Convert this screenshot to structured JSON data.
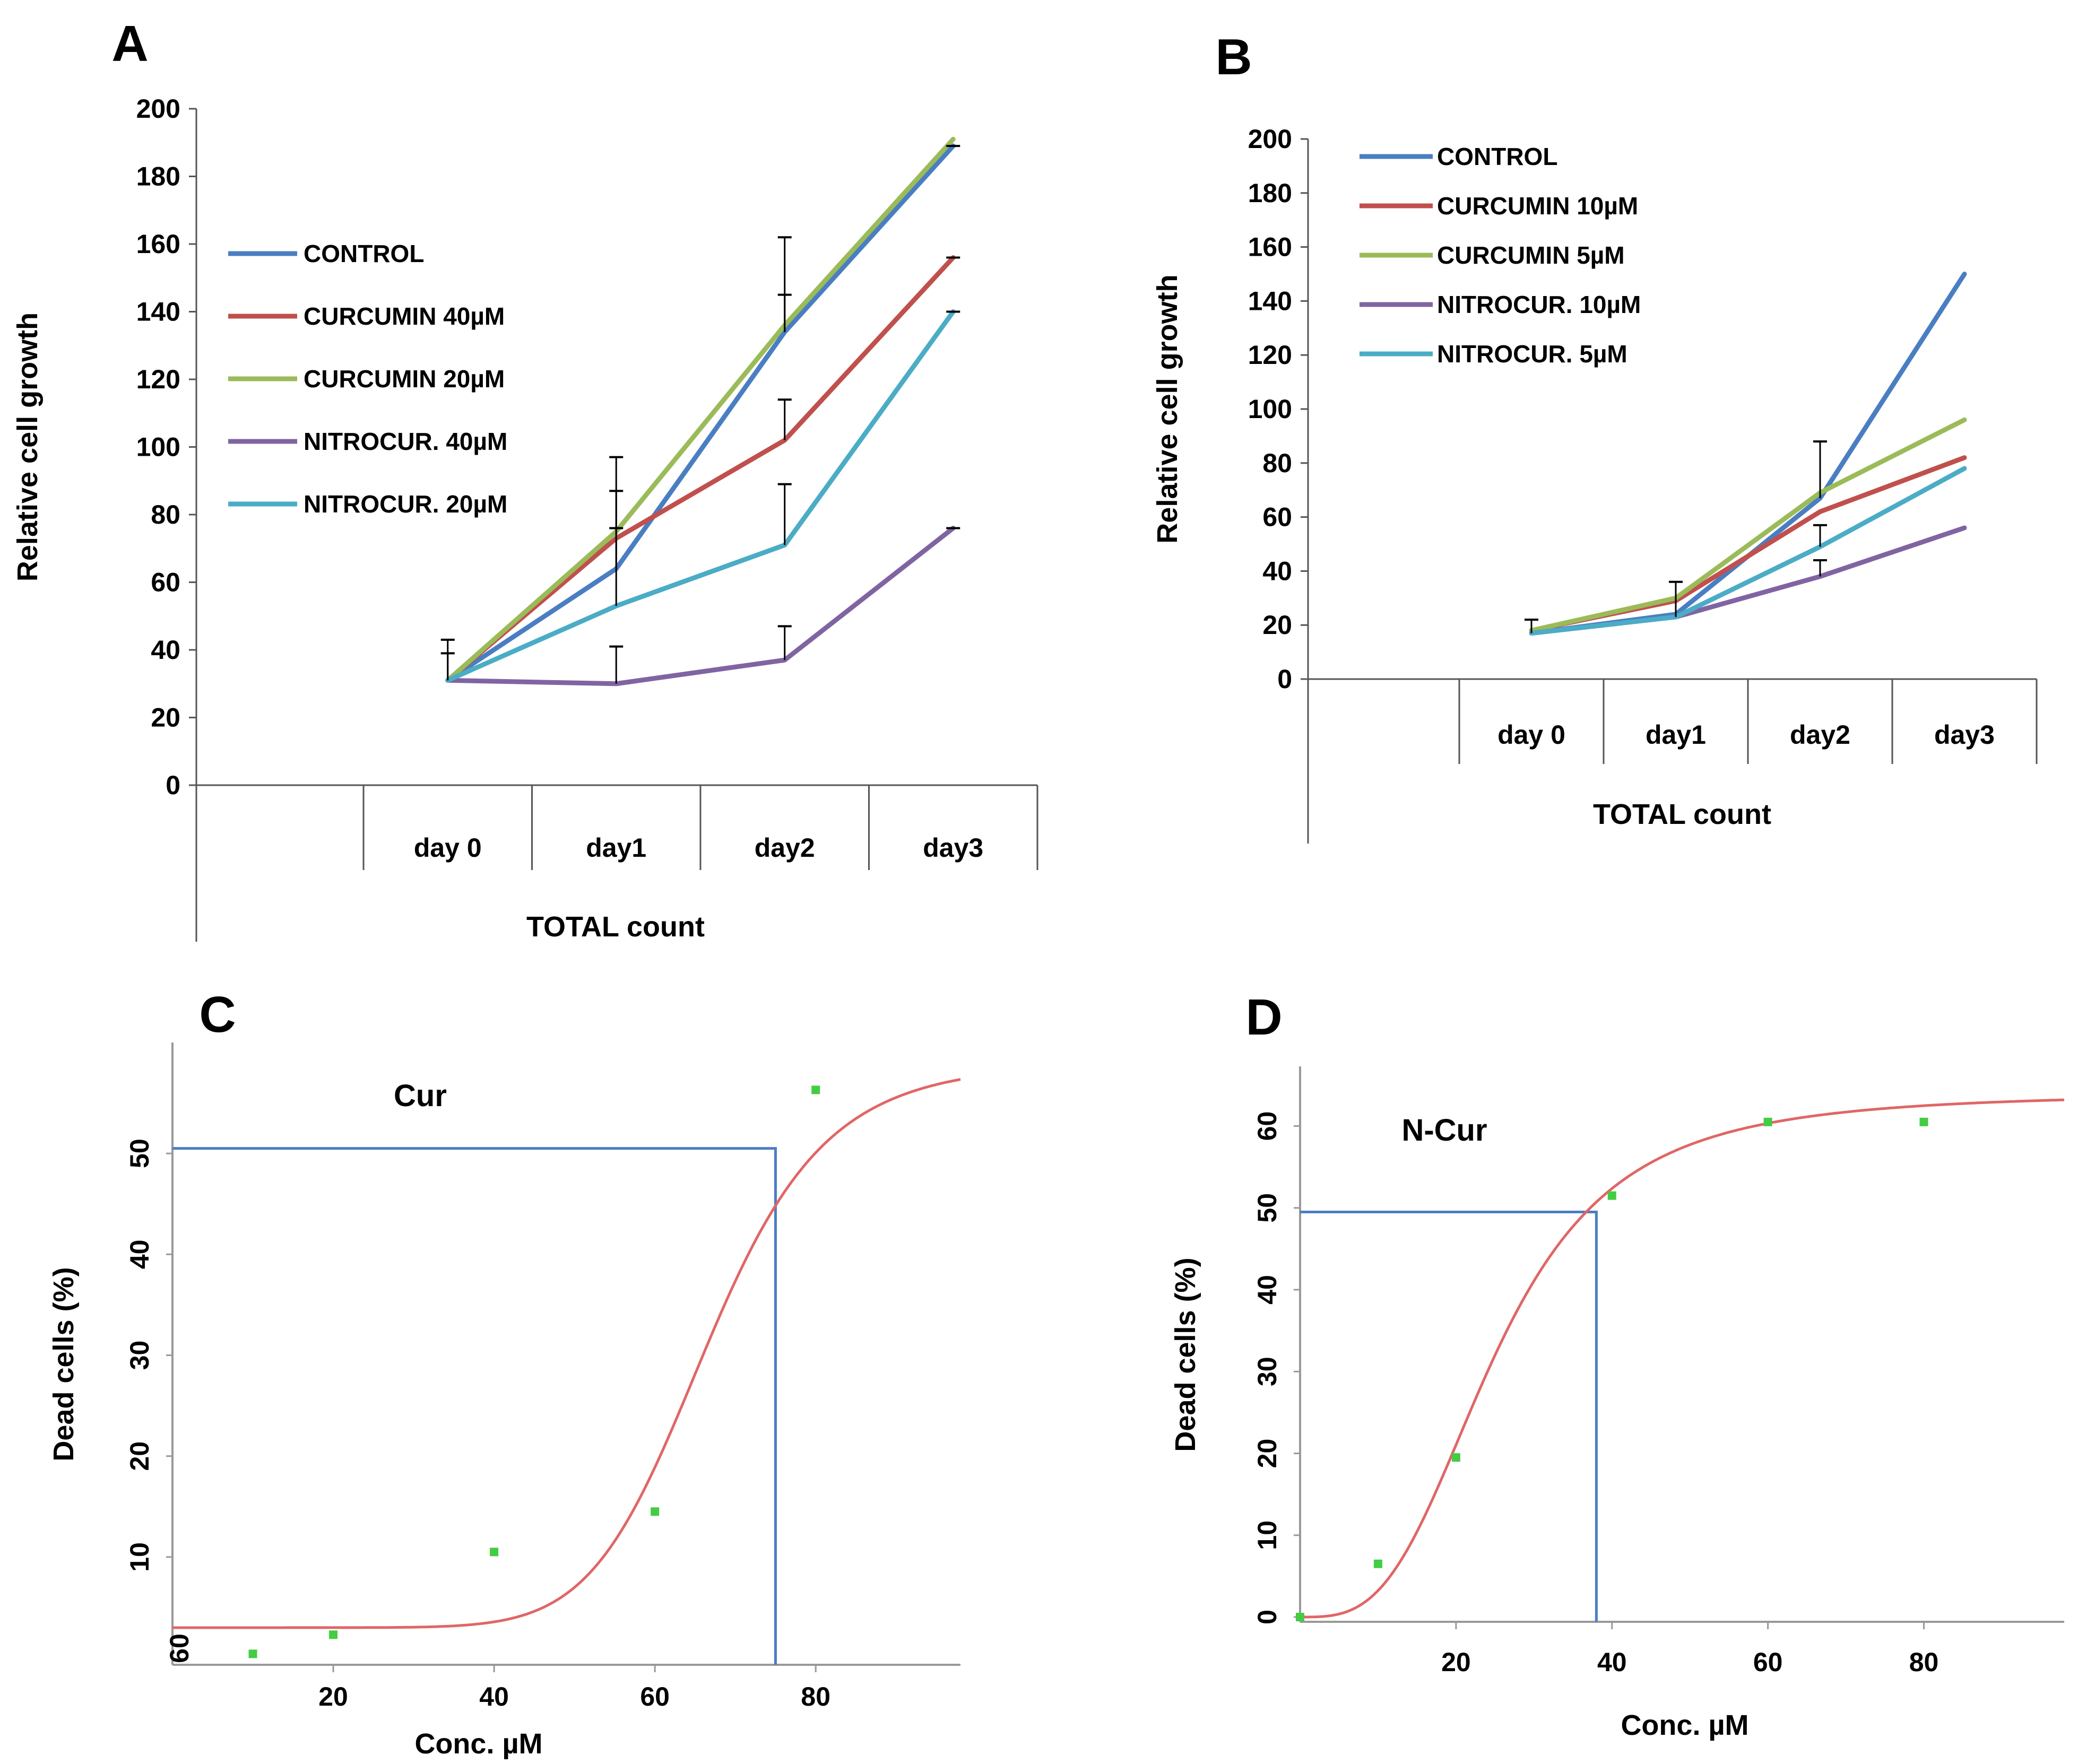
{
  "colors": {
    "control": "#4a7ec2",
    "red": "#c0504d",
    "green": "#9bbb59",
    "purple": "#8064a2",
    "cyan": "#4bacc6",
    "fit": "#e06666",
    "guide": "#4a7ec2",
    "point": "#44cc44",
    "axis": "#555555"
  },
  "chart_data": [
    {
      "panel": "A",
      "type": "line",
      "ylabel": "Relative cell growth",
      "xlabel": "TOTAL count",
      "ylim": [
        0,
        200
      ],
      "yticks": [
        "0",
        "20",
        "40",
        "60",
        "80",
        "100",
        "120",
        "140",
        "160",
        "180",
        "200"
      ],
      "categories": [
        "day 0",
        "day1",
        "day2",
        "day3"
      ],
      "series": [
        {
          "name": "CONTROL",
          "color_key": "control",
          "values": [
            31,
            64,
            134,
            189
          ]
        },
        {
          "name": "CURCUMIN 40µM",
          "color_key": "red",
          "values": [
            31,
            73,
            102,
            156
          ]
        },
        {
          "name": "CURCUMIN 20µM",
          "color_key": "green",
          "values": [
            31,
            75,
            136,
            191
          ]
        },
        {
          "name": "NITROCUR. 40µM",
          "color_key": "purple",
          "values": [
            31,
            30,
            37,
            76
          ]
        },
        {
          "name": "NITROCUR. 20µM",
          "color_key": "cyan",
          "values": [
            31,
            53,
            71,
            140
          ]
        }
      ],
      "error_bars": [
        {
          "category": 0,
          "low": 31,
          "high": 43
        },
        {
          "category": 0,
          "low": 31,
          "high": 39
        },
        {
          "category": 1,
          "low": 64,
          "high": 97
        },
        {
          "category": 1,
          "low": 73,
          "high": 87
        },
        {
          "category": 1,
          "low": 53,
          "high": 76
        },
        {
          "category": 1,
          "low": 30,
          "high": 41
        },
        {
          "category": 2,
          "low": 134,
          "high": 162
        },
        {
          "category": 2,
          "low": 134,
          "high": 145
        },
        {
          "category": 2,
          "low": 102,
          "high": 114
        },
        {
          "category": 2,
          "low": 71,
          "high": 89
        },
        {
          "category": 2,
          "low": 37,
          "high": 47
        },
        {
          "category": 3,
          "low": 189,
          "high": 189
        },
        {
          "category": 3,
          "low": 156,
          "high": 156
        },
        {
          "category": 3,
          "low": 140,
          "high": 140
        },
        {
          "category": 3,
          "low": 76,
          "high": 76
        }
      ]
    },
    {
      "panel": "B",
      "type": "line",
      "ylabel": "Relative cell growth",
      "xlabel": "TOTAL count",
      "ylim": [
        0,
        200
      ],
      "yticks": [
        "0",
        "20",
        "40",
        "60",
        "80",
        "100",
        "120",
        "140",
        "160",
        "180",
        "200"
      ],
      "categories": [
        "day 0",
        "day1",
        "day2",
        "day3"
      ],
      "series": [
        {
          "name": "CONTROL",
          "color_key": "control",
          "values": [
            17,
            24,
            67,
            150
          ]
        },
        {
          "name": "CURCUMIN 10µM",
          "color_key": "red",
          "values": [
            18,
            29,
            62,
            82
          ]
        },
        {
          "name": "CURCUMIN 5µM",
          "color_key": "green",
          "values": [
            18,
            30,
            69,
            96
          ]
        },
        {
          "name": "NITROCUR. 10µM",
          "color_key": "purple",
          "values": [
            17,
            23,
            38,
            56
          ]
        },
        {
          "name": "NITROCUR. 5µM",
          "color_key": "cyan",
          "values": [
            17,
            23,
            49,
            78
          ]
        }
      ],
      "error_bars": [
        {
          "category": 0,
          "low": 17,
          "high": 22
        },
        {
          "category": 1,
          "low": 23,
          "high": 36
        },
        {
          "category": 2,
          "low": 67,
          "high": 88
        },
        {
          "category": 2,
          "low": 49,
          "high": 57
        },
        {
          "category": 2,
          "low": 38,
          "high": 44
        }
      ]
    },
    {
      "panel": "C",
      "type": "scatter",
      "annotation": "Cur",
      "xlabel": "Conc. µM",
      "ylabel": "Dead cells (%)",
      "xlim": [
        0,
        98
      ],
      "ylim": [
        0,
        61
      ],
      "xticks": [
        20,
        40,
        60,
        80
      ],
      "yticks": [
        10,
        20,
        30,
        40,
        50
      ],
      "origin_label": "60",
      "points": [
        {
          "x": 10,
          "y": 0.4
        },
        {
          "x": 20,
          "y": 2.3
        },
        {
          "x": 40,
          "y": 10.5
        },
        {
          "x": 60,
          "y": 14.5
        },
        {
          "x": 80,
          "y": 56.3
        }
      ],
      "fit": {
        "bottom": 3,
        "top": 59,
        "ec50": 66.5,
        "slope": 9
      },
      "guide": {
        "x": 75,
        "y": 50.5
      }
    },
    {
      "panel": "D",
      "type": "scatter",
      "annotation": "N-Cur",
      "xlabel": "Conc. µM",
      "ylabel": "Dead cells (%)",
      "xlim": [
        0,
        98
      ],
      "ylim": [
        0,
        66
      ],
      "xticks": [
        20,
        40,
        60,
        80
      ],
      "yticks": [
        0,
        10,
        20,
        30,
        40,
        50,
        60
      ],
      "points": [
        {
          "x": 0,
          "y": 0
        },
        {
          "x": 10,
          "y": 6.5
        },
        {
          "x": 20,
          "y": 19.5
        },
        {
          "x": 40,
          "y": 51.5
        },
        {
          "x": 60,
          "y": 60.5
        },
        {
          "x": 80,
          "y": 60.5
        }
      ],
      "fit": {
        "bottom": 0,
        "top": 64,
        "ec50": 25,
        "slope": 3.2
      },
      "guide": {
        "x": 38,
        "y": 49.5
      }
    }
  ]
}
